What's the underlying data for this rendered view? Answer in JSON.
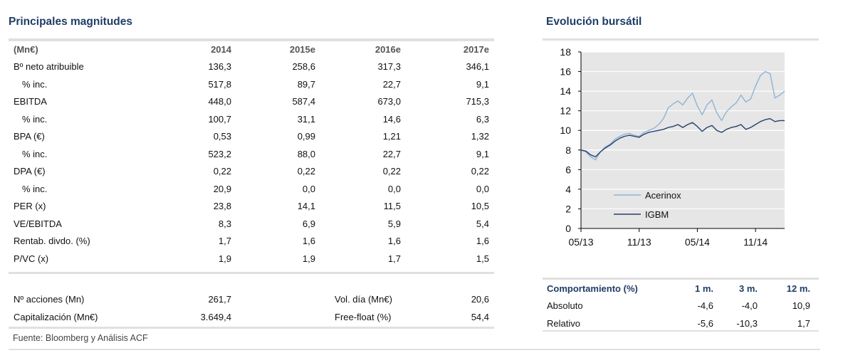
{
  "left": {
    "title": "Principales magnitudes",
    "header": [
      "(Mn€)",
      "2014",
      "2015e",
      "2016e",
      "2017e"
    ],
    "rows": [
      {
        "label": "Bº neto atribuible",
        "indent": false,
        "values": [
          "136,3",
          "258,6",
          "317,3",
          "346,1"
        ]
      },
      {
        "label": "% inc.",
        "indent": true,
        "values": [
          "517,8",
          "89,7",
          "22,7",
          "9,1"
        ]
      },
      {
        "label": "EBITDA",
        "indent": false,
        "values": [
          "448,0",
          "587,4",
          "673,0",
          "715,3"
        ]
      },
      {
        "label": "% inc.",
        "indent": true,
        "values": [
          "100,7",
          "31,1",
          "14,6",
          "6,3"
        ]
      },
      {
        "label": "BPA (€)",
        "indent": false,
        "values": [
          "0,53",
          "0,99",
          "1,21",
          "1,32"
        ]
      },
      {
        "label": "% inc.",
        "indent": true,
        "values": [
          "523,2",
          "88,0",
          "22,7",
          "9,1"
        ]
      },
      {
        "label": "DPA (€)",
        "indent": false,
        "values": [
          "0,22",
          "0,22",
          "0,22",
          "0,22"
        ]
      },
      {
        "label": "% inc.",
        "indent": true,
        "values": [
          "20,9",
          "0,0",
          "0,0",
          "0,0"
        ]
      },
      {
        "label": "PER (x)",
        "indent": false,
        "values": [
          "23,8",
          "14,1",
          "11,5",
          "10,5"
        ]
      },
      {
        "label": "VE/EBITDA",
        "indent": false,
        "values": [
          "8,3",
          "6,9",
          "5,9",
          "5,4"
        ]
      },
      {
        "label": "Rentab. divdo. (%)",
        "indent": false,
        "values": [
          "1,7",
          "1,6",
          "1,6",
          "1,6"
        ]
      },
      {
        "label": "P/VC (x)",
        "indent": false,
        "values": [
          "1,9",
          "1,9",
          "1,7",
          "1,5"
        ]
      }
    ],
    "extra": [
      {
        "label1": "Nº acciones (Mn)",
        "value1": "261,7",
        "label2": "Vol. día (Mn€)",
        "value2": "20,6"
      },
      {
        "label1": "Capitalización (Mn€)",
        "value1": "3.649,4",
        "label2": "Free-float (%)",
        "value2": "54,4"
      }
    ],
    "source": "Fuente: Bloomberg y Análisis ACF"
  },
  "right": {
    "title": "Evolución bursátil",
    "behaviour": {
      "header": [
        "Comportamiento (%)",
        "1 m.",
        "3 m.",
        "12 m."
      ],
      "rows": [
        {
          "label": "Absoluto",
          "values": [
            "-4,6",
            "-4,0",
            "10,9"
          ]
        },
        {
          "label": "Relativo",
          "values": [
            "-5,6",
            "-10,3",
            "1,7"
          ]
        }
      ]
    }
  },
  "colors": {
    "title": "#1f3d66",
    "acerinox_line": "#8fb3d6",
    "igbm_line": "#26406b",
    "grid": "#ffffff",
    "plot_bg": "#e6e6e6"
  },
  "chart_data": {
    "type": "line",
    "x_ticks": [
      "05/13",
      "11/13",
      "05/14",
      "11/14"
    ],
    "y_ticks": [
      "0",
      "2",
      "4",
      "6",
      "8",
      "10",
      "12",
      "14",
      "16",
      "18"
    ],
    "ylim": [
      0,
      18
    ],
    "xlim": [
      0,
      21
    ],
    "grid": true,
    "legend_position": "center-left",
    "series": [
      {
        "name": "Acerinox",
        "x": [
          0,
          0.5,
          1,
          1.5,
          2,
          2.5,
          3,
          3.5,
          4,
          4.5,
          5,
          5.5,
          6,
          6.5,
          7,
          7.5,
          8,
          8.5,
          9,
          9.5,
          10,
          10.5,
          11,
          11.5,
          12,
          12.5,
          13,
          13.5,
          14,
          14.5,
          15,
          15.5,
          16,
          16.5,
          17,
          17.5,
          18,
          18.5,
          19,
          19.5,
          20,
          20.5,
          21
        ],
        "values": [
          8.0,
          7.8,
          7.3,
          7.0,
          7.8,
          8.3,
          8.6,
          9.1,
          9.4,
          9.6,
          9.7,
          9.5,
          9.4,
          9.8,
          10.0,
          10.2,
          10.6,
          11.2,
          12.3,
          12.7,
          13.0,
          12.6,
          13.3,
          13.8,
          12.5,
          11.6,
          12.6,
          13.1,
          11.8,
          11.0,
          11.9,
          12.4,
          12.8,
          13.6,
          12.9,
          13.2,
          14.5,
          15.6,
          16.0,
          15.8,
          13.3,
          13.6,
          14.0
        ]
      },
      {
        "name": "IGBM",
        "x": [
          0,
          0.5,
          1,
          1.5,
          2,
          2.5,
          3,
          3.5,
          4,
          4.5,
          5,
          5.5,
          6,
          6.5,
          7,
          7.5,
          8,
          8.5,
          9,
          9.5,
          10,
          10.5,
          11,
          11.5,
          12,
          12.5,
          13,
          13.5,
          14,
          14.5,
          15,
          15.5,
          16,
          16.5,
          17,
          17.5,
          18,
          18.5,
          19,
          19.5,
          20,
          20.5,
          21
        ],
        "values": [
          8.0,
          7.9,
          7.5,
          7.3,
          7.8,
          8.2,
          8.5,
          8.9,
          9.2,
          9.4,
          9.5,
          9.4,
          9.3,
          9.6,
          9.8,
          9.9,
          10.0,
          10.1,
          10.3,
          10.4,
          10.6,
          10.3,
          10.6,
          10.8,
          10.4,
          9.9,
          10.3,
          10.5,
          10.0,
          9.8,
          10.1,
          10.3,
          10.4,
          10.6,
          10.1,
          10.3,
          10.6,
          10.9,
          11.1,
          11.2,
          10.9,
          11.0,
          11.0
        ]
      }
    ]
  }
}
